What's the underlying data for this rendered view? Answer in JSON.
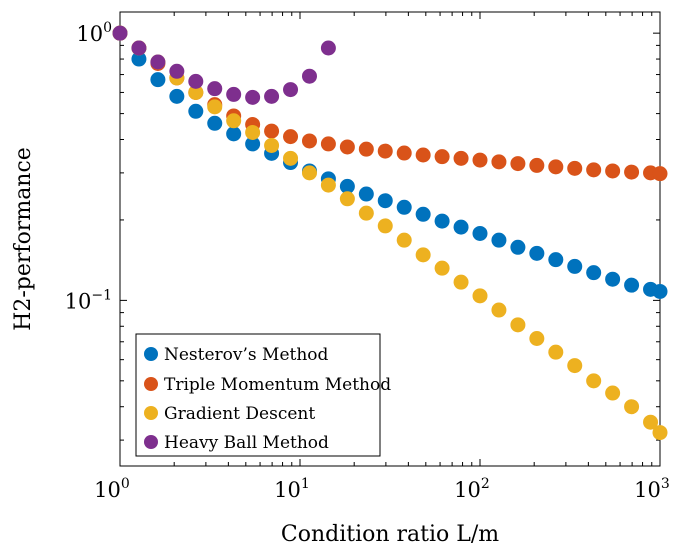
{
  "chart_data": {
    "type": "scatter",
    "title": "",
    "xlabel": "Condition ratio L/m",
    "ylabel": "H2-performance",
    "x_scale": "log",
    "y_scale": "log",
    "xlim": [
      1,
      1000
    ],
    "ylim": [
      0.024,
      1.2
    ],
    "grid": false,
    "legend_position": "bottom-left",
    "x_ticks": [
      {
        "value": 1,
        "base": "10",
        "exp": "0"
      },
      {
        "value": 10,
        "base": "10",
        "exp": "1"
      },
      {
        "value": 100,
        "base": "10",
        "exp": "2"
      },
      {
        "value": 1000,
        "base": "10",
        "exp": "3"
      }
    ],
    "y_ticks": [
      {
        "value": 1,
        "base": "10",
        "exp": "0"
      },
      {
        "value": 0.1,
        "base": "10",
        "exp": "−1"
      }
    ],
    "series": [
      {
        "name": "Nesterov’s Method",
        "color": "#0072BD",
        "x": [
          1,
          1.274,
          1.624,
          2.069,
          2.637,
          3.36,
          4.281,
          5.456,
          6.952,
          8.859,
          11.29,
          14.38,
          18.33,
          23.36,
          29.76,
          37.93,
          48.33,
          61.58,
          78.48,
          100,
          127.4,
          162.4,
          206.9,
          263.7,
          336,
          428.1,
          545.6,
          695.2,
          885.9,
          1000
        ],
        "y": [
          1.0,
          0.8,
          0.67,
          0.58,
          0.51,
          0.46,
          0.42,
          0.385,
          0.355,
          0.328,
          0.305,
          0.285,
          0.267,
          0.25,
          0.236,
          0.223,
          0.21,
          0.198,
          0.188,
          0.178,
          0.168,
          0.158,
          0.15,
          0.142,
          0.134,
          0.127,
          0.12,
          0.114,
          0.11,
          0.108
        ]
      },
      {
        "name": "Triple Momentum Method",
        "color": "#D95319",
        "x": [
          1,
          1.274,
          1.624,
          2.069,
          2.637,
          3.36,
          4.281,
          5.456,
          6.952,
          8.859,
          11.29,
          14.38,
          18.33,
          23.36,
          29.76,
          37.93,
          48.33,
          61.58,
          78.48,
          100,
          127.4,
          162.4,
          206.9,
          263.7,
          336,
          428.1,
          545.6,
          695.2,
          885.9,
          1000
        ],
        "y": [
          1.0,
          0.88,
          0.77,
          0.68,
          0.6,
          0.54,
          0.49,
          0.455,
          0.43,
          0.41,
          0.395,
          0.385,
          0.375,
          0.368,
          0.362,
          0.356,
          0.35,
          0.345,
          0.34,
          0.335,
          0.33,
          0.325,
          0.32,
          0.316,
          0.312,
          0.308,
          0.305,
          0.302,
          0.3,
          0.298
        ]
      },
      {
        "name": "Gradient Descent",
        "color": "#EDB120",
        "x": [
          1,
          1.274,
          1.624,
          2.069,
          2.637,
          3.36,
          4.281,
          5.456,
          6.952,
          8.859,
          11.29,
          14.38,
          18.33,
          23.36,
          29.76,
          37.93,
          48.33,
          61.58,
          78.48,
          100,
          127.4,
          162.4,
          206.9,
          263.7,
          336,
          428.1,
          545.6,
          695.2,
          885.9,
          1000
        ],
        "y": [
          1.0,
          0.88,
          0.78,
          0.68,
          0.6,
          0.53,
          0.47,
          0.425,
          0.38,
          0.34,
          0.3,
          0.27,
          0.24,
          0.212,
          0.19,
          0.168,
          0.148,
          0.132,
          0.117,
          0.104,
          0.092,
          0.081,
          0.072,
          0.064,
          0.057,
          0.05,
          0.045,
          0.04,
          0.035,
          0.032
        ]
      },
      {
        "name": "Heavy Ball Method",
        "color": "#7E2F8E",
        "x": [
          1,
          1.274,
          1.624,
          2.069,
          2.637,
          3.36,
          4.281,
          5.456,
          6.952,
          8.859,
          11.29,
          14.38
        ],
        "y": [
          1.0,
          0.88,
          0.78,
          0.72,
          0.66,
          0.62,
          0.59,
          0.575,
          0.58,
          0.615,
          0.69,
          0.88
        ]
      }
    ]
  }
}
